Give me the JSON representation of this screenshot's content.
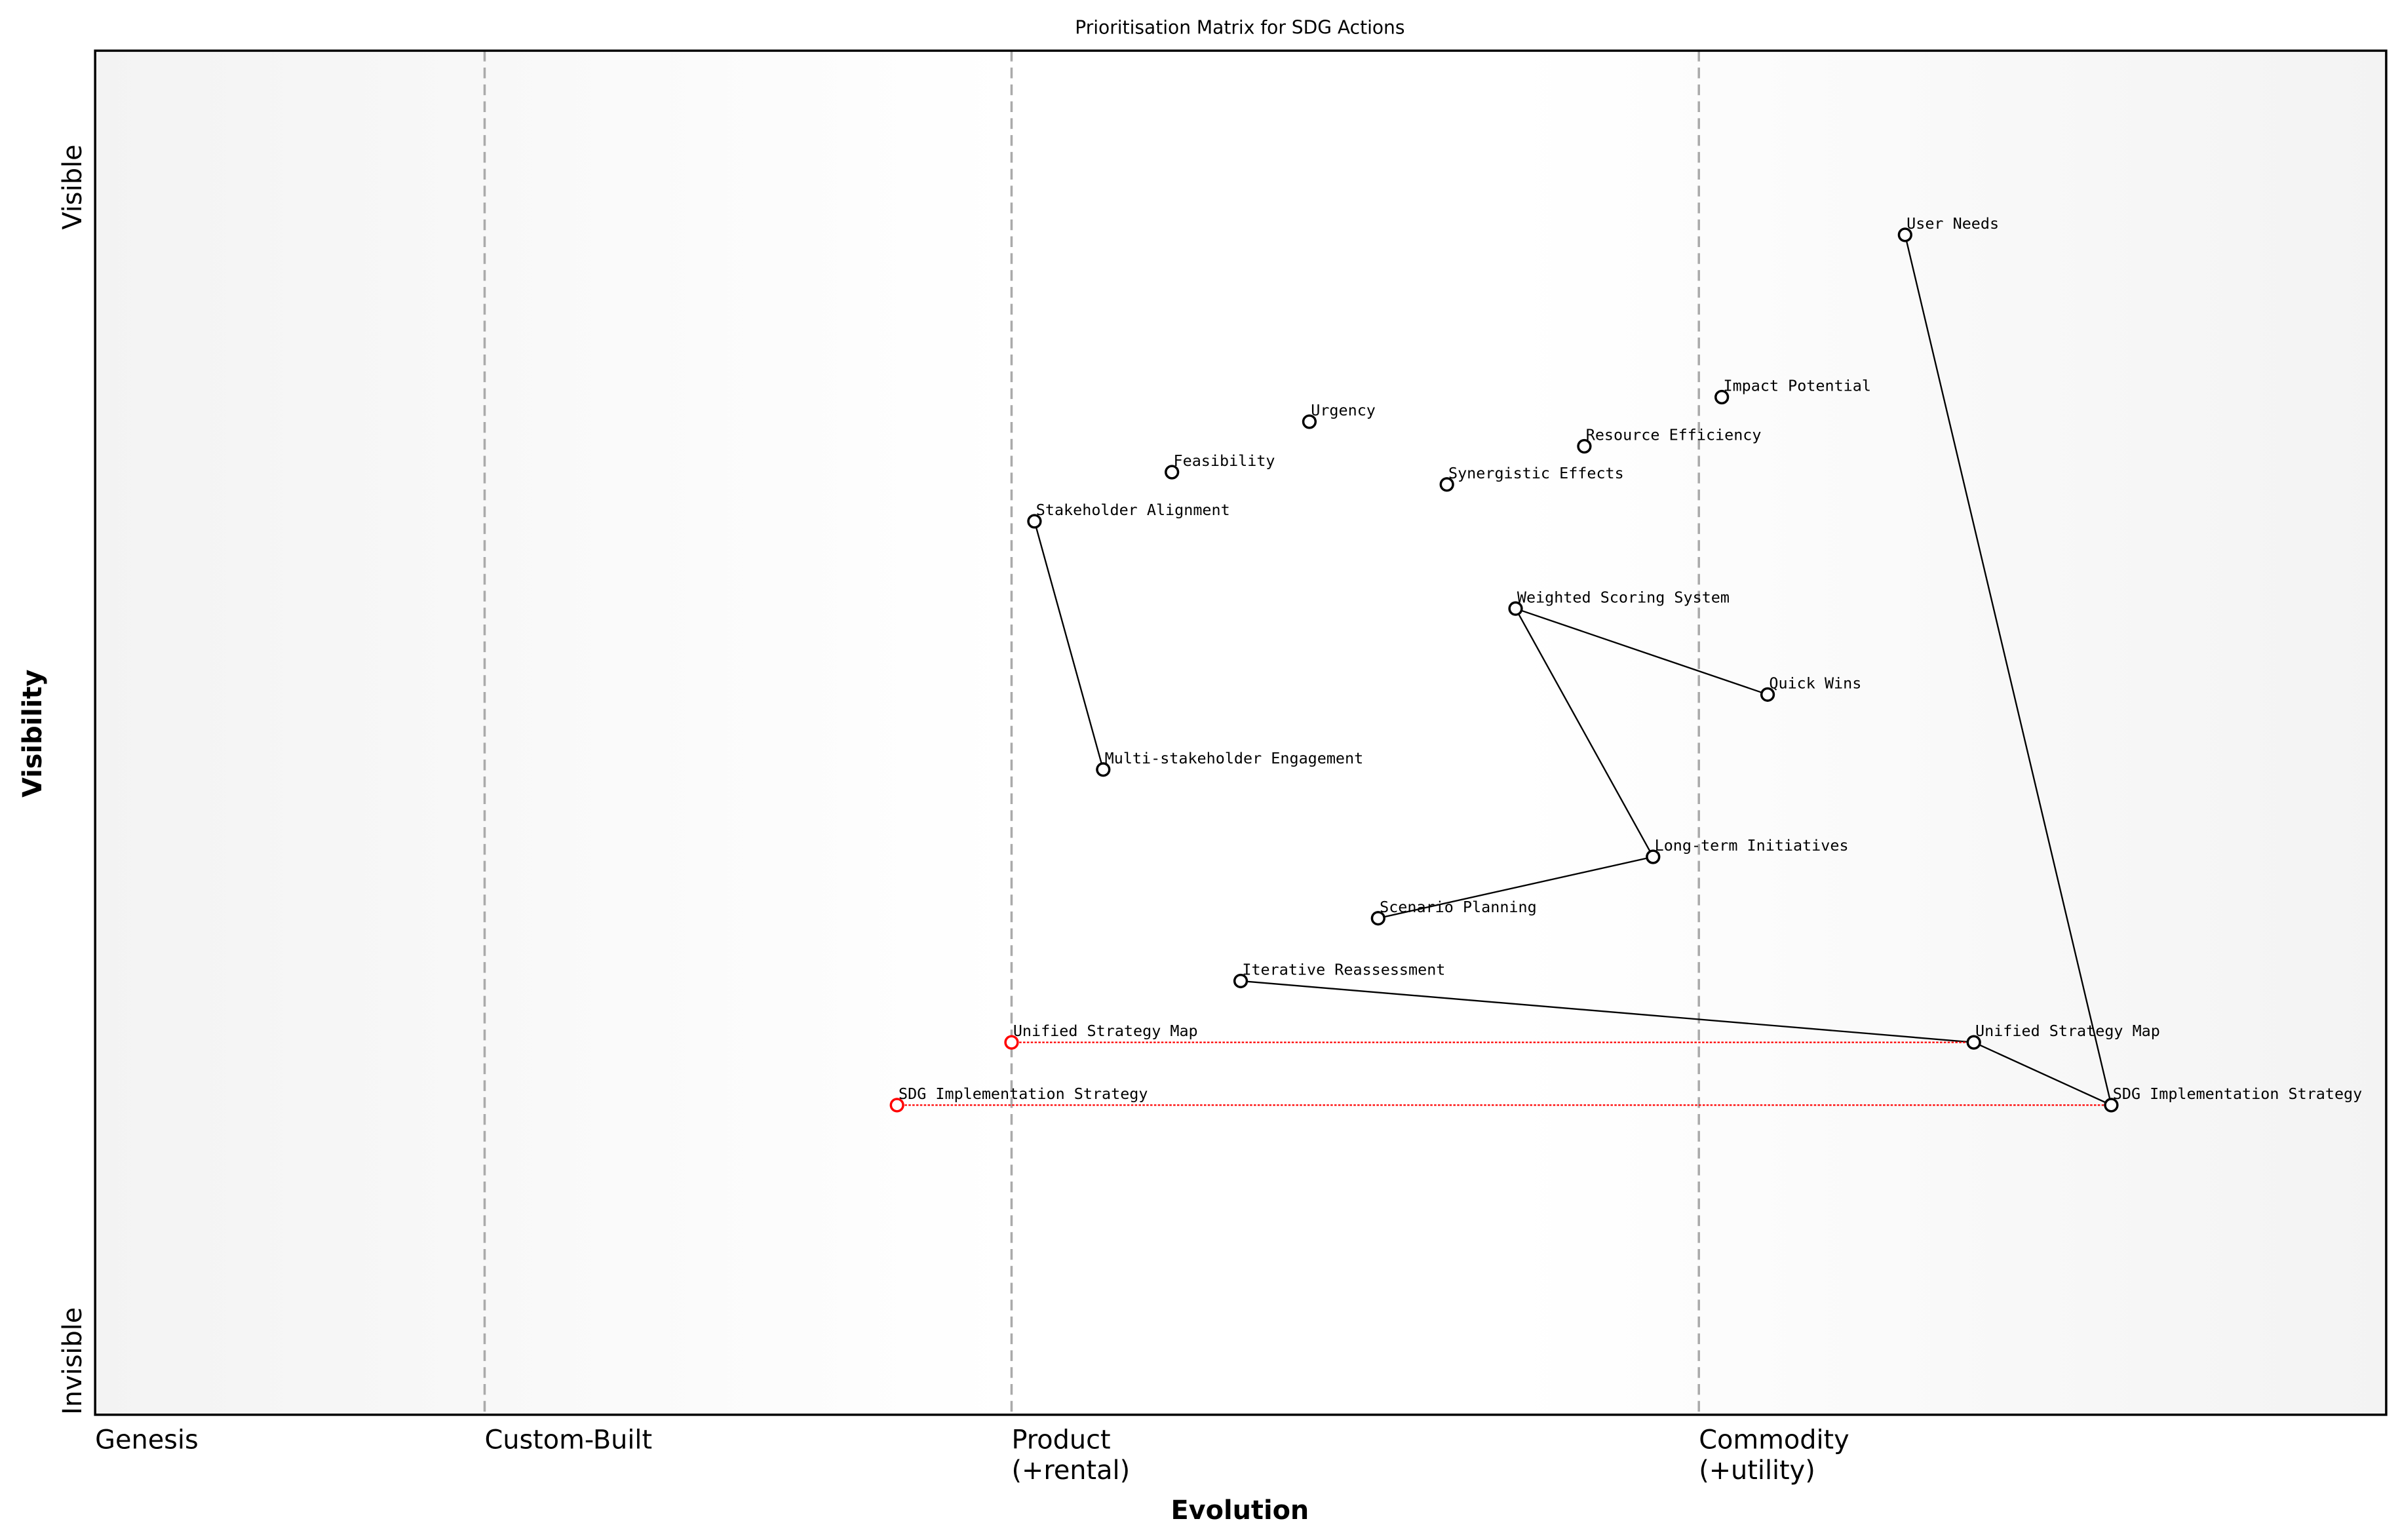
{
  "chart_data": {
    "type": "scatter",
    "title": "Prioritisation Matrix for SDG Actions",
    "xlabel": "Evolution",
    "ylabel": "Visibility",
    "xlim": [
      0,
      1
    ],
    "ylim": [
      0,
      1
    ],
    "grid": false,
    "stages": [
      {
        "label": "Genesis",
        "x": 0
      },
      {
        "label": "Custom-Built",
        "x": 0.17
      },
      {
        "label": "Product\n(+rental)",
        "x": 0.4
      },
      {
        "label": "Commodity\n(+utility)",
        "x": 0.7
      }
    ],
    "y_ticks": [
      {
        "label": "Visible",
        "y": 0.9
      },
      {
        "label": "Invisible",
        "y": 0.0
      }
    ],
    "components": [
      {
        "name": "User Needs",
        "x": 0.79,
        "y": 0.865
      },
      {
        "name": "Impact Potential",
        "x": 0.71,
        "y": 0.746
      },
      {
        "name": "Urgency",
        "x": 0.53,
        "y": 0.728
      },
      {
        "name": "Resource Efficiency",
        "x": 0.65,
        "y": 0.71
      },
      {
        "name": "Feasibility",
        "x": 0.47,
        "y": 0.691
      },
      {
        "name": "Synergistic Effects",
        "x": 0.59,
        "y": 0.682
      },
      {
        "name": "Stakeholder Alignment",
        "x": 0.41,
        "y": 0.655
      },
      {
        "name": "Weighted Scoring System",
        "x": 0.62,
        "y": 0.591
      },
      {
        "name": "Quick Wins",
        "x": 0.73,
        "y": 0.528
      },
      {
        "name": "Multi-stakeholder Engagement",
        "x": 0.44,
        "y": 0.473
      },
      {
        "name": "Long-term Initiatives",
        "x": 0.68,
        "y": 0.409
      },
      {
        "name": "Scenario Planning",
        "x": 0.56,
        "y": 0.364
      },
      {
        "name": "Iterative Reassessment",
        "x": 0.5,
        "y": 0.318
      },
      {
        "name": "Unified Strategy Map",
        "x": 0.82,
        "y": 0.273
      },
      {
        "name": "SDG Implementation Strategy",
        "x": 0.88,
        "y": 0.227
      }
    ],
    "evolution_from": [
      {
        "name": "Unified Strategy Map",
        "x": 0.4,
        "y": 0.273,
        "to_x": 0.82
      },
      {
        "name": "SDG Implementation Strategy",
        "x": 0.35,
        "y": 0.227,
        "to_x": 0.88
      }
    ],
    "links": [
      [
        "User Needs",
        "SDG Implementation Strategy"
      ],
      [
        "SDG Implementation Strategy",
        "Unified Strategy Map"
      ],
      [
        "Unified Strategy Map",
        "Iterative Reassessment"
      ],
      [
        "Stakeholder Alignment",
        "Multi-stakeholder Engagement"
      ],
      [
        "Weighted Scoring System",
        "Quick Wins"
      ],
      [
        "Weighted Scoring System",
        "Long-term Initiatives"
      ],
      [
        "Long-term Initiatives",
        "Scenario Planning"
      ]
    ],
    "colors": {
      "component": "#000000",
      "evolution": "#ff0000",
      "stage_line": "#aaaaaa"
    }
  }
}
